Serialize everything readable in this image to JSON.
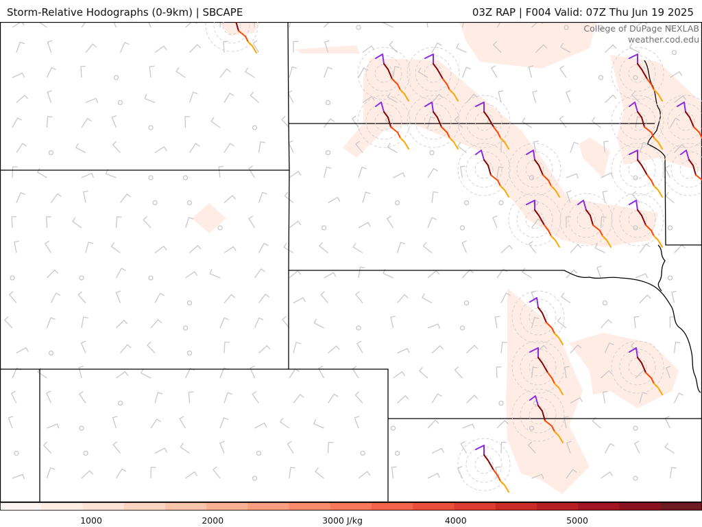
{
  "header": {
    "title_left": "Storm-Relative Hodographs (0-9km) | SBCAPE",
    "title_right": "03Z RAP | F004 Valid: 07Z Thu Jun 19 2025"
  },
  "credit": {
    "line1": "College of DuPage NEXLAB",
    "line2": "weather.cod.edu"
  },
  "colorbar": {
    "variable": "SBCAPE",
    "range": [
      0,
      6000
    ],
    "labels": [
      {
        "value": 1000,
        "text": "1000"
      },
      {
        "value": 2000,
        "text": "2000"
      },
      {
        "value": 3000,
        "text": "3000 J/kg"
      },
      {
        "value": 4000,
        "text": "4000"
      },
      {
        "value": 5000,
        "text": "5000"
      }
    ],
    "colors": [
      "#fff5f0",
      "#ffece3",
      "#fee2d5",
      "#fdd3c1",
      "#fcc3ab",
      "#fcb194",
      "#fc9f81",
      "#fb8b6c",
      "#f9785a",
      "#f3644b",
      "#ea4f3b",
      "#dc3c31",
      "#cb2b27",
      "#b61f24",
      "#a11622",
      "#8a1220",
      "#6f1a23"
    ]
  },
  "colors": {
    "hodo_0_1km": "#8a2be2",
    "hodo_1_3km": "#8b0000",
    "hodo_3_6km": "#ff4500",
    "hodo_6_9km": "#ffa500",
    "borders": "#000000",
    "barbs": "#c8c8c8"
  }
}
